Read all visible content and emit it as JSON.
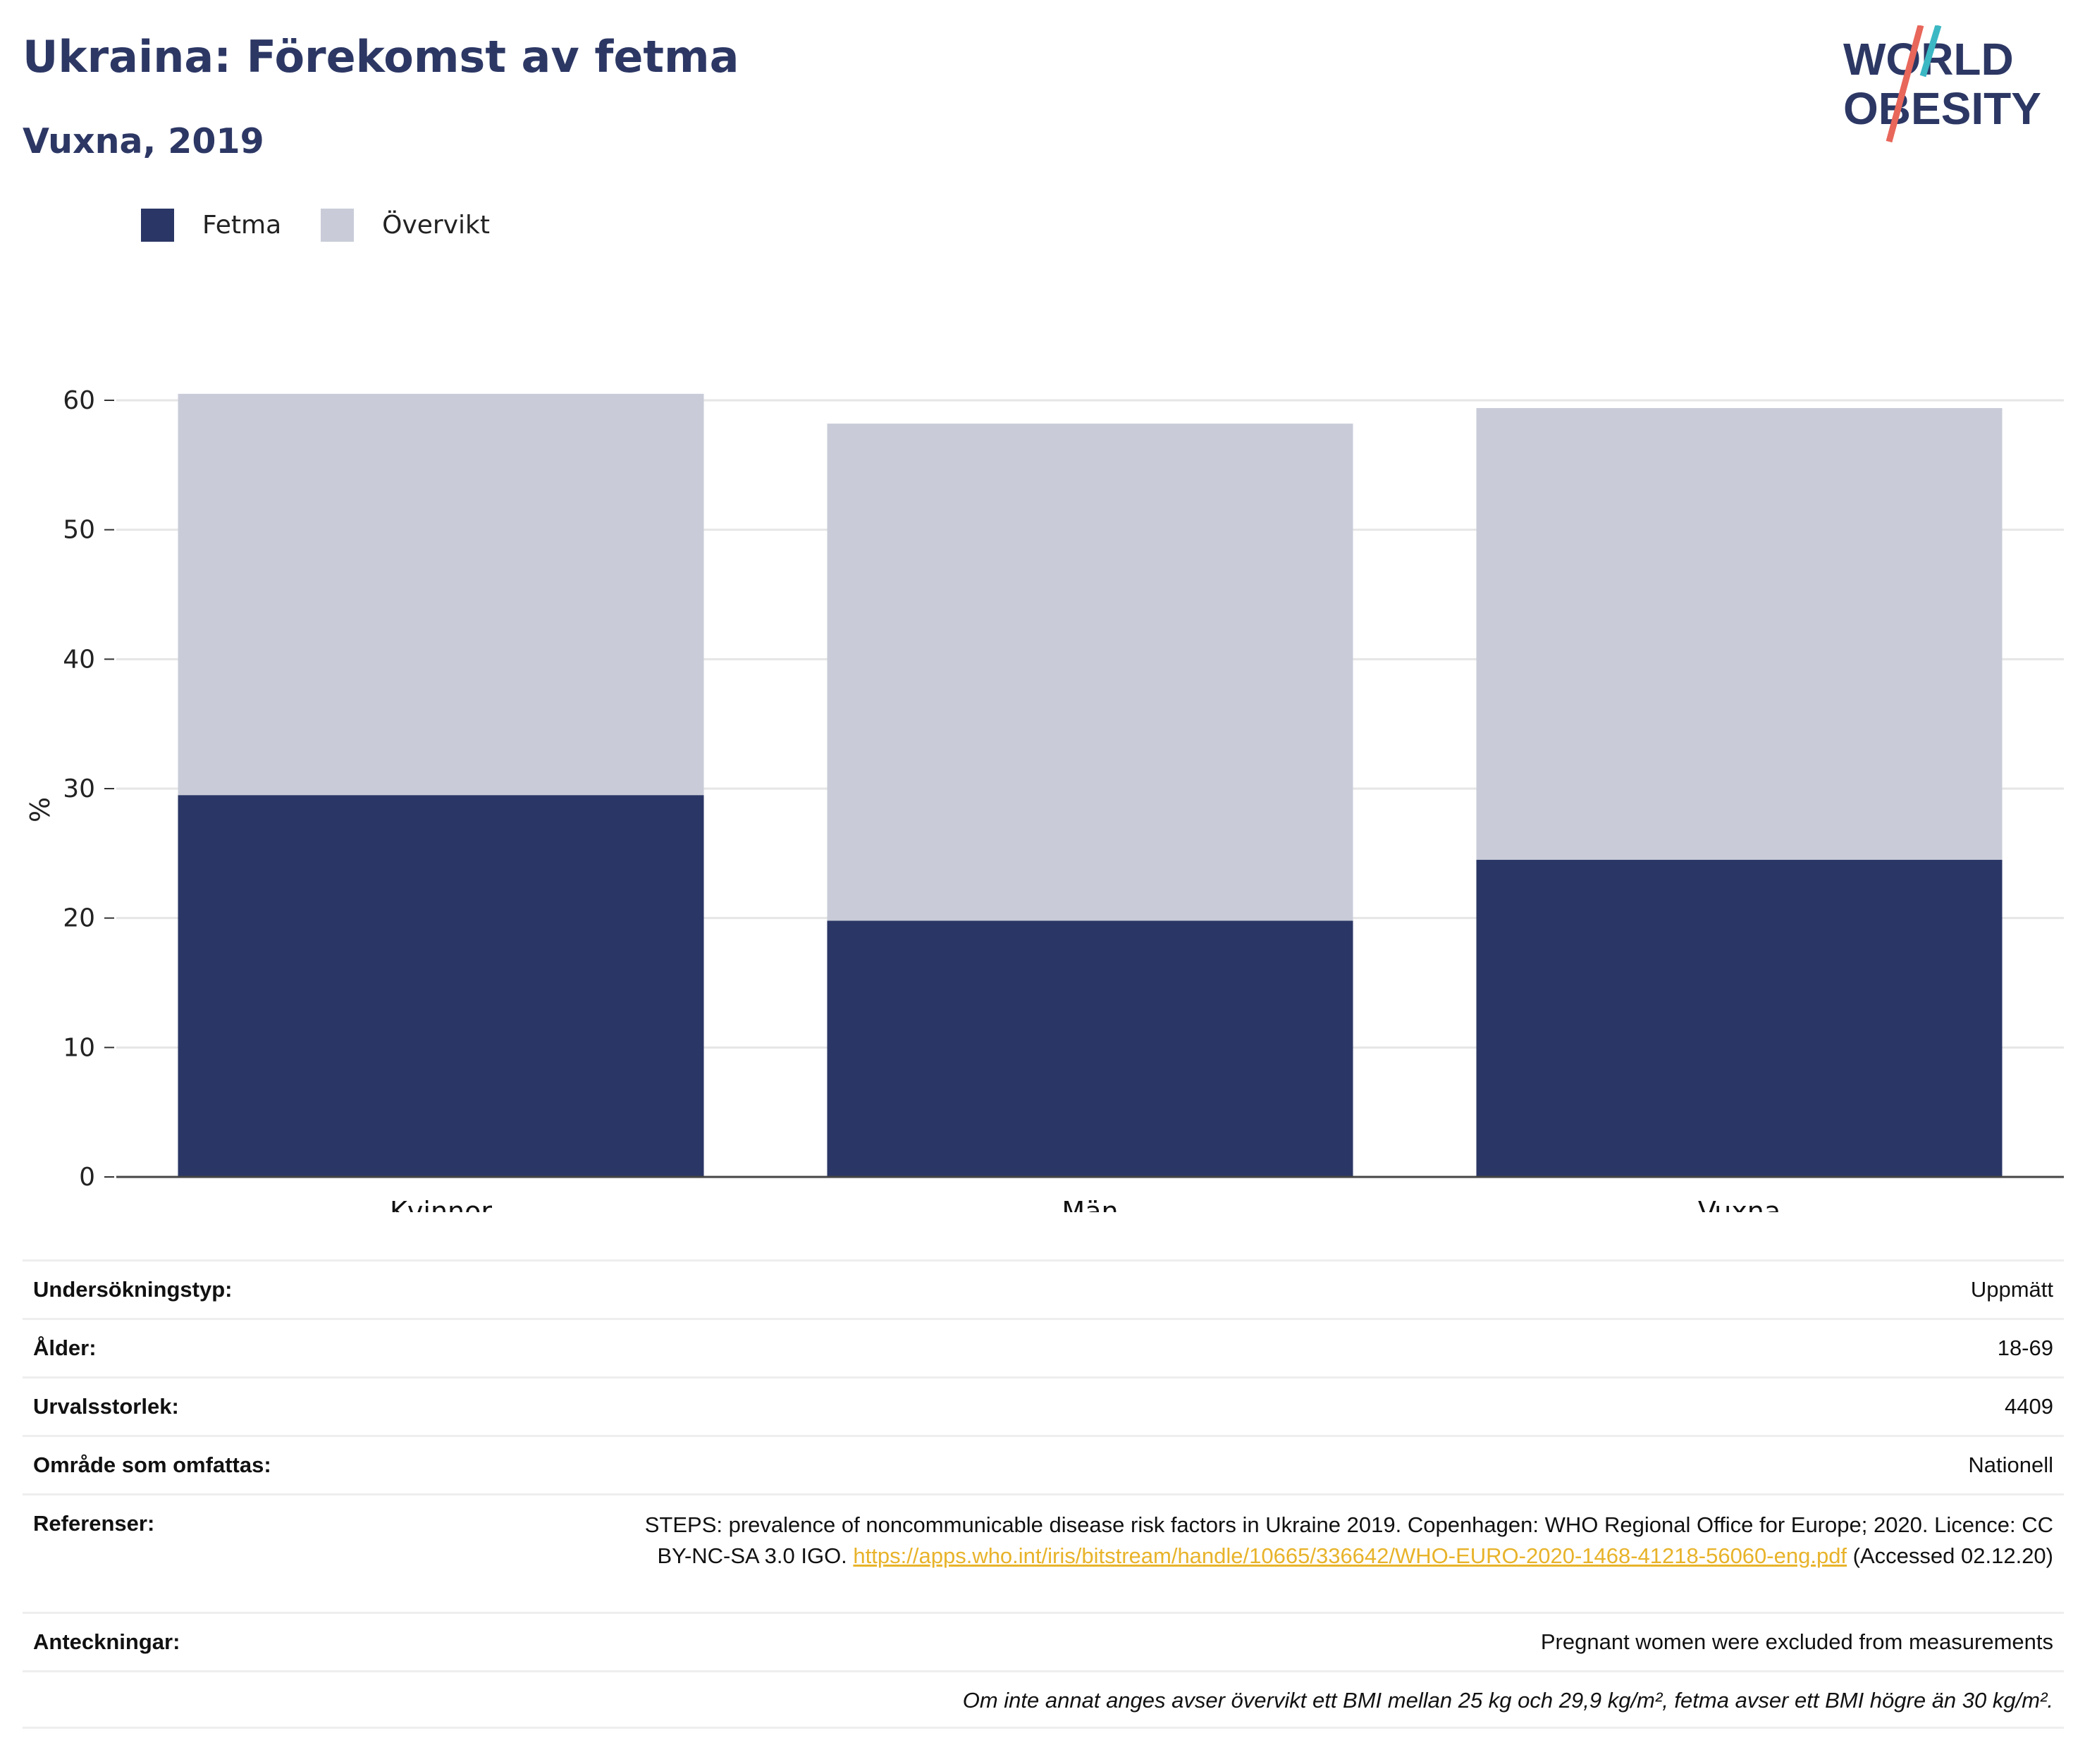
{
  "header": {
    "title": "Ukraina: Förekomst av fetma",
    "subtitle": "Vuxna, 2019"
  },
  "logo": {
    "line1": "WORLD",
    "line2": "OBESITY"
  },
  "colors": {
    "fetma": "#2a3665",
    "overvikt": "#c9ccd8",
    "title": "#2c3764",
    "link": "#e8b32a",
    "logo_red": "#e8665a",
    "logo_teal": "#3bb8c3"
  },
  "legend": [
    {
      "label": "Fetma",
      "color": "#2a3665"
    },
    {
      "label": "Övervikt",
      "color": "#c9ccd8"
    }
  ],
  "chart_data": {
    "type": "bar",
    "stacked": true,
    "categories": [
      "Kvinnor",
      "Män",
      "Vuxna"
    ],
    "series": [
      {
        "name": "Fetma",
        "values": [
          29.5,
          19.8,
          24.5
        ]
      },
      {
        "name": "Övervikt",
        "values": [
          31.0,
          38.4,
          34.9
        ]
      }
    ],
    "ylabel": "%",
    "ylim": [
      0,
      60
    ],
    "yticks": [
      0,
      10,
      20,
      30,
      40,
      50,
      60
    ],
    "grid": true,
    "legend_position": "top-left"
  },
  "info": {
    "survey_type": {
      "label": "Undersökningstyp:",
      "value": "Uppmätt"
    },
    "age": {
      "label": "Ålder:",
      "value": "18-69"
    },
    "sample_size": {
      "label": "Urvalsstorlek:",
      "value": "4409"
    },
    "area": {
      "label": "Område som omfattas:",
      "value": "Nationell"
    },
    "references": {
      "label": "Referenser:",
      "text_before": "STEPS: prevalence of noncommunicable disease risk factors in Ukraine 2019. Copenhagen: WHO Regional Office for Europe; 2020. Licence: CC BY-NC-SA 3.0 IGO.",
      "link": "https://apps.who.int/iris/bitstream/handle/10665/336642/WHO-EURO-2020-1468-41218-56060-eng.pdf",
      "text_after": "(Accessed 02.12.20)"
    },
    "notes": {
      "label": "Anteckningar:",
      "value": "Pregnant women were excluded from measurements"
    },
    "footnote": "Om inte annat anges avser övervikt ett BMI mellan 25 kg och 29,9 kg/m², fetma avser ett BMI högre än 30 kg/m²."
  }
}
